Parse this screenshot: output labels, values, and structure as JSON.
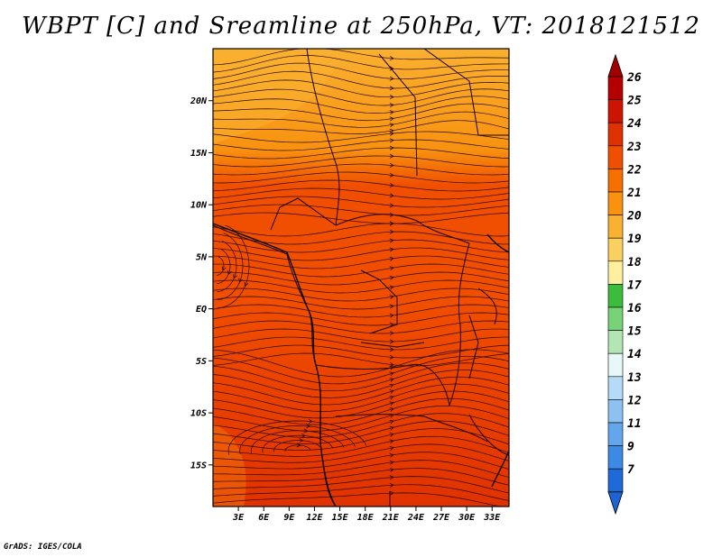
{
  "title": "WBPT [C] and Sreamline at 250hPa, VT: 2018121512",
  "credit": "GrADS: IGES/COLA",
  "map": {
    "lat_range": [
      -19,
      25
    ],
    "lon_range": [
      0,
      35
    ],
    "lat_ticks": [
      {
        "value": 20,
        "label": "20N"
      },
      {
        "value": 15,
        "label": "15N"
      },
      {
        "value": 10,
        "label": "10N"
      },
      {
        "value": 5,
        "label": "5N"
      },
      {
        "value": 0,
        "label": "EQ"
      },
      {
        "value": -5,
        "label": "5S"
      },
      {
        "value": -10,
        "label": "10S"
      },
      {
        "value": -15,
        "label": "15S"
      }
    ],
    "lon_ticks": [
      {
        "value": 3,
        "label": "3E"
      },
      {
        "value": 6,
        "label": "6E"
      },
      {
        "value": 9,
        "label": "9E"
      },
      {
        "value": 12,
        "label": "12E"
      },
      {
        "value": 15,
        "label": "15E"
      },
      {
        "value": 18,
        "label": "18E"
      },
      {
        "value": 21,
        "label": "21E"
      },
      {
        "value": 24,
        "label": "24E"
      },
      {
        "value": 27,
        "label": "27E"
      },
      {
        "value": 30,
        "label": "30E"
      },
      {
        "value": 33,
        "label": "33E"
      }
    ]
  },
  "colorbar": {
    "labels": [
      "26",
      "25",
      "24",
      "23",
      "22",
      "21",
      "20",
      "19",
      "18",
      "17",
      "16",
      "15",
      "14",
      "13",
      "12",
      "11",
      "9",
      "7"
    ],
    "colors": [
      "#b40000",
      "#cc1400",
      "#e03200",
      "#f04e00",
      "#f67000",
      "#f89210",
      "#fab030",
      "#fcd060",
      "#fff0a0",
      "#3cbc3c",
      "#78d278",
      "#b4e6b4",
      "#e6f8f8",
      "#b4dcf8",
      "#8cc2f2",
      "#64a6ec",
      "#3c8ae4",
      "#1e6ad8"
    ],
    "top_arrow_color": "#a00000",
    "bottom_arrow_color": "#1e64d2"
  },
  "fill_colors": {
    "north": "#fab030",
    "mid_north": "#f89210",
    "central": "#f04e00",
    "south": "#e03200"
  }
}
